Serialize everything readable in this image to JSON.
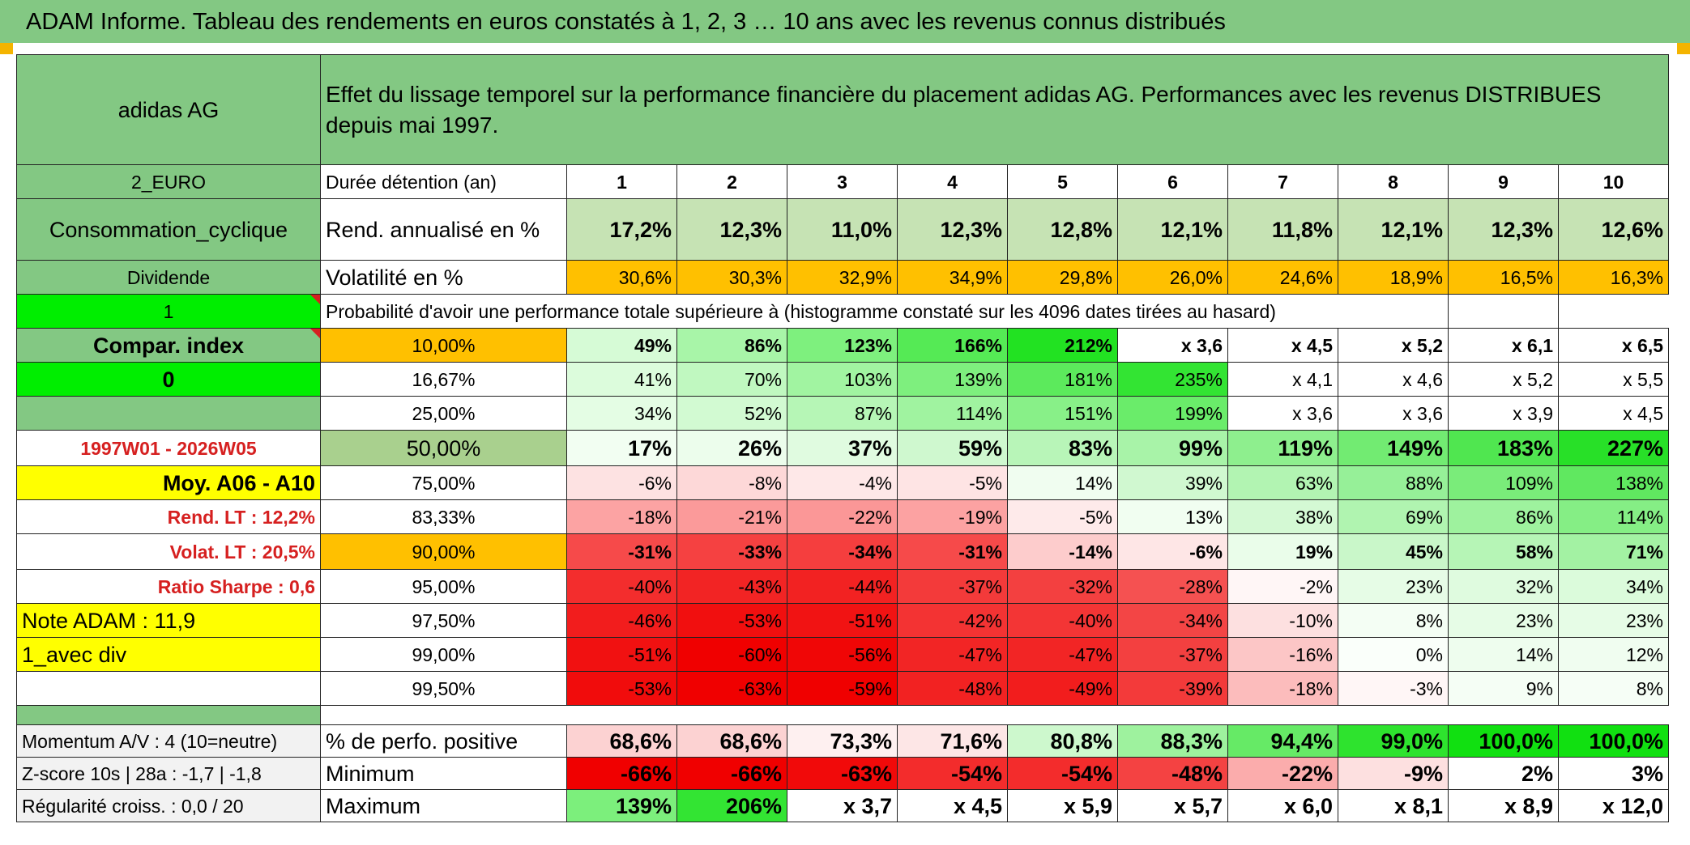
{
  "header": {
    "title": "ADAM Informe. Tableau des rendements en euros constatés à 1, 2, 3 … 10 ans avec les revenus connus distribués"
  },
  "colors": {
    "title_bg": "#83c883",
    "header_green": "#83c883",
    "orange": "#ffc000",
    "yellow": "#ffff00",
    "bright_green": "#00ee00",
    "accent_red": "#d62020"
  },
  "left": {
    "name": "adidas AG",
    "currency": "2_EURO",
    "sector": "Consommation_cyclique",
    "income": "Dividende",
    "param1": "1",
    "compar": "Compar. index",
    "param0": "0",
    "period": "1997W01 - 2026W05",
    "moy": "Moy. A06 - A10",
    "rend_lt": "Rend. LT :    12,2%",
    "volat_lt": "Volat. LT :    20,5%",
    "sharpe": "Ratio Sharpe :    0,6",
    "note": "Note ADAM : 11,9",
    "avec_div": "1_avec div",
    "momentum": "Momentum A/V : 4 (10=neutre)",
    "zscore": "Z-score 10s | 28a : -1,7 | -1,8",
    "regularite": "Régularité croiss. : 0,0 / 20"
  },
  "description": "Effet du lissage temporel sur la performance financière du placement adidas AG. Performances avec les revenus DISTRIBUES depuis mai 1997.",
  "labels": {
    "duree": "Durée détention (an)",
    "rend": "Rend. annualisé en %",
    "vol": "Volatilité en %",
    "proba": "Probabilité d'avoir une performance totale supérieure à (histogramme constaté sur les 4096 dates tirées au hasard)",
    "pos": "% de perfo. positive",
    "min": "Minimum",
    "max": "Maximum"
  },
  "years": [
    "1",
    "2",
    "3",
    "4",
    "5",
    "6",
    "7",
    "8",
    "9",
    "10"
  ],
  "rend": [
    "17,2%",
    "12,3%",
    "11,0%",
    "12,3%",
    "12,8%",
    "12,1%",
    "11,8%",
    "12,1%",
    "12,3%",
    "12,6%"
  ],
  "vol": [
    "30,6%",
    "30,3%",
    "32,9%",
    "34,9%",
    "29,8%",
    "26,0%",
    "24,6%",
    "18,9%",
    "16,5%",
    "16,3%"
  ],
  "quantiles": [
    {
      "p": "10,00%",
      "v": [
        "49%",
        "86%",
        "123%",
        "166%",
        "212%",
        "x 3,6",
        "x 4,5",
        "x 5,2",
        "x 6,1",
        "x 6,5"
      ]
    },
    {
      "p": "16,67%",
      "v": [
        "41%",
        "70%",
        "103%",
        "139%",
        "181%",
        "235%",
        "x 4,1",
        "x 4,6",
        "x 5,2",
        "x 5,5"
      ]
    },
    {
      "p": "25,00%",
      "v": [
        "34%",
        "52%",
        "87%",
        "114%",
        "151%",
        "199%",
        "x 3,6",
        "x 3,6",
        "x 3,9",
        "x 4,5"
      ]
    },
    {
      "p": "50,00%",
      "v": [
        "17%",
        "26%",
        "37%",
        "59%",
        "83%",
        "99%",
        "119%",
        "149%",
        "183%",
        "227%"
      ]
    },
    {
      "p": "75,00%",
      "v": [
        "-6%",
        "-8%",
        "-4%",
        "-5%",
        "14%",
        "39%",
        "63%",
        "88%",
        "109%",
        "138%"
      ]
    },
    {
      "p": "83,33%",
      "v": [
        "-18%",
        "-21%",
        "-22%",
        "-19%",
        "-5%",
        "13%",
        "38%",
        "69%",
        "86%",
        "114%"
      ]
    },
    {
      "p": "90,00%",
      "v": [
        "-31%",
        "-33%",
        "-34%",
        "-31%",
        "-14%",
        "-6%",
        "19%",
        "45%",
        "58%",
        "71%"
      ]
    },
    {
      "p": "95,00%",
      "v": [
        "-40%",
        "-43%",
        "-44%",
        "-37%",
        "-32%",
        "-28%",
        "-2%",
        "23%",
        "32%",
        "34%"
      ]
    },
    {
      "p": "97,50%",
      "v": [
        "-46%",
        "-53%",
        "-51%",
        "-42%",
        "-40%",
        "-34%",
        "-10%",
        "8%",
        "23%",
        "23%"
      ]
    },
    {
      "p": "99,00%",
      "v": [
        "-51%",
        "-60%",
        "-56%",
        "-47%",
        "-47%",
        "-37%",
        "-16%",
        "0%",
        "14%",
        "12%"
      ]
    },
    {
      "p": "99,50%",
      "v": [
        "-53%",
        "-63%",
        "-59%",
        "-48%",
        "-49%",
        "-39%",
        "-18%",
        "-3%",
        "9%",
        "8%"
      ]
    }
  ],
  "pos": [
    "68,6%",
    "68,6%",
    "73,3%",
    "71,6%",
    "80,8%",
    "88,3%",
    "94,4%",
    "99,0%",
    "100,0%",
    "100,0%"
  ],
  "min": [
    "-66%",
    "-66%",
    "-63%",
    "-54%",
    "-54%",
    "-48%",
    "-22%",
    "-9%",
    "2%",
    "3%"
  ],
  "max": [
    "139%",
    "206%",
    "x 3,7",
    "x 4,5",
    "x 5,9",
    "x 5,7",
    "x 6,0",
    "x 8,1",
    "x 8,9",
    "x 12,0"
  ],
  "cell_colors": {
    "rend": [
      "#c6e3b4",
      "#c6e3b4",
      "#c6e3b4",
      "#c6e3b4",
      "#c6e3b4",
      "#c6e3b4",
      "#c6e3b4",
      "#c6e3b4",
      "#c6e3b4",
      "#c6e3b4"
    ],
    "vol": [
      "#ffc000",
      "#ffc000",
      "#ffc000",
      "#ffc000",
      "#ffc000",
      "#ffc000",
      "#ffc000",
      "#ffc000",
      "#ffc000",
      "#ffc000"
    ],
    "q0": [
      "#d6fbd6",
      "#a8f5a8",
      "#7ef07e",
      "#55ea55",
      "#22e222",
      "#ffffff",
      "#ffffff",
      "#ffffff",
      "#ffffff",
      "#ffffff"
    ],
    "q1": [
      "#dcfcdc",
      "#c0f8c0",
      "#a1f4a1",
      "#7eef7e",
      "#5cea5c",
      "#33e433",
      "#ffffff",
      "#ffffff",
      "#ffffff",
      "#ffffff"
    ],
    "q2": [
      "#e4fde4",
      "#d2fad2",
      "#b6f6b6",
      "#a0f3a0",
      "#88f088",
      "#6aec6a",
      "#ffffff",
      "#ffffff",
      "#ffffff",
      "#ffffff"
    ],
    "q3": [
      "#f2fef2",
      "#ecfdec",
      "#e0fbe0",
      "#cff8cf",
      "#b8f5b8",
      "#a8f3a8",
      "#8eef8e",
      "#72eb72",
      "#50e650",
      "#28e028"
    ],
    "q4": [
      "#fde2e2",
      "#fdd8d8",
      "#fee8e8",
      "#fee4e4",
      "#f0fdf0",
      "#d0f8d0",
      "#b2f4b2",
      "#96f098",
      "#7aec7a",
      "#60e860"
    ],
    "q5": [
      "#fca3a3",
      "#fb9a9a",
      "#fb9797",
      "#fca2a2",
      "#feeaea",
      "#f1fef1",
      "#d4f9d4",
      "#b0f4b0",
      "#9ef29e",
      "#85ee85"
    ],
    "q6": [
      "#f64a4a",
      "#f54141",
      "#f53e3e",
      "#f64a4a",
      "#fdcccc",
      "#fee6e6",
      "#eafdea",
      "#c9f7c9",
      "#b6f5b6",
      "#a3f2a3"
    ],
    "q7": [
      "#f32d2d",
      "#f22424",
      "#f22222",
      "#f33a3a",
      "#f34040",
      "#f55151",
      "#fff6f6",
      "#e6fce6",
      "#dffbdf",
      "#dbfbdb"
    ],
    "q8": [
      "#f21d1d",
      "#f10f0f",
      "#f11313",
      "#f33333",
      "#f33535",
      "#f34545",
      "#fde0e0",
      "#f4fef4",
      "#e6fce6",
      "#e6fce6"
    ],
    "q9": [
      "#f11111",
      "#f00000",
      "#f00606",
      "#f22525",
      "#f22525",
      "#f34040",
      "#fcc6c6",
      "#fafffa",
      "#eefdee",
      "#f0fdf0"
    ],
    "q10": [
      "#f10c0c",
      "#f00000",
      "#f00000",
      "#f22222",
      "#f21d1d",
      "#f33a3a",
      "#fcbcbc",
      "#fff6f6",
      "#f5fef5",
      "#f6fef6"
    ],
    "pos": [
      "#fcd2d2",
      "#fcd2d2",
      "#fef0f0",
      "#fde6e6",
      "#cdf8cd",
      "#9ef29e",
      "#66ea66",
      "#2ee32e",
      "#11e011",
      "#11e011"
    ],
    "min": [
      "#f00000",
      "#f00000",
      "#f10a0a",
      "#f32c2c",
      "#f32c2c",
      "#f44242",
      "#fbacac",
      "#fde0e0",
      "#ffffff",
      "#ffffff"
    ],
    "max": [
      "#7cef7c",
      "#33e433",
      "#ffffff",
      "#ffffff",
      "#ffffff",
      "#ffffff",
      "#ffffff",
      "#ffffff",
      "#ffffff",
      "#ffffff"
    ]
  }
}
